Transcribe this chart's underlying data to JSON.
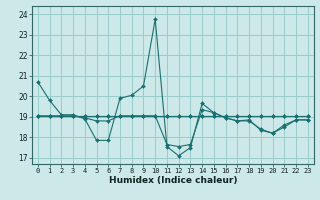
{
  "xlabel": "Humidex (Indice chaleur)",
  "background_color": "#cce8e8",
  "grid_color": "#99cccc",
  "line_color": "#1a7070",
  "xlim": [
    -0.5,
    23.5
  ],
  "ylim": [
    16.7,
    24.4
  ],
  "yticks": [
    17,
    18,
    19,
    20,
    21,
    22,
    23,
    24
  ],
  "xticks": [
    0,
    1,
    2,
    3,
    4,
    5,
    6,
    7,
    8,
    9,
    10,
    11,
    12,
    13,
    14,
    15,
    16,
    17,
    18,
    19,
    20,
    21,
    22,
    23
  ],
  "series": [
    [
      20.7,
      19.8,
      19.1,
      19.1,
      18.9,
      17.85,
      17.85,
      19.9,
      20.05,
      20.5,
      23.75,
      17.55,
      17.1,
      17.5,
      19.65,
      19.2,
      18.95,
      18.8,
      18.85,
      18.35,
      18.2,
      18.5,
      18.85,
      18.85
    ],
    [
      19.05,
      19.05,
      19.05,
      19.05,
      19.05,
      19.05,
      19.05,
      19.05,
      19.05,
      19.05,
      19.05,
      19.05,
      19.05,
      19.05,
      19.05,
      19.05,
      19.05,
      19.05,
      19.05,
      19.05,
      19.05,
      19.05,
      19.05,
      19.05
    ],
    [
      19.05,
      19.05,
      19.05,
      19.05,
      19.05,
      19.05,
      19.05,
      19.05,
      19.05,
      19.05,
      19.05,
      19.05,
      19.05,
      19.05,
      19.05,
      19.05,
      19.05,
      19.05,
      19.05,
      19.05,
      19.05,
      19.05,
      19.05,
      19.05
    ],
    [
      19.05,
      19.05,
      19.05,
      19.05,
      18.95,
      18.8,
      18.8,
      19.05,
      19.05,
      19.05,
      19.05,
      17.65,
      17.55,
      17.65,
      19.35,
      19.2,
      18.95,
      18.8,
      18.8,
      18.4,
      18.2,
      18.6,
      18.85,
      18.85
    ]
  ]
}
